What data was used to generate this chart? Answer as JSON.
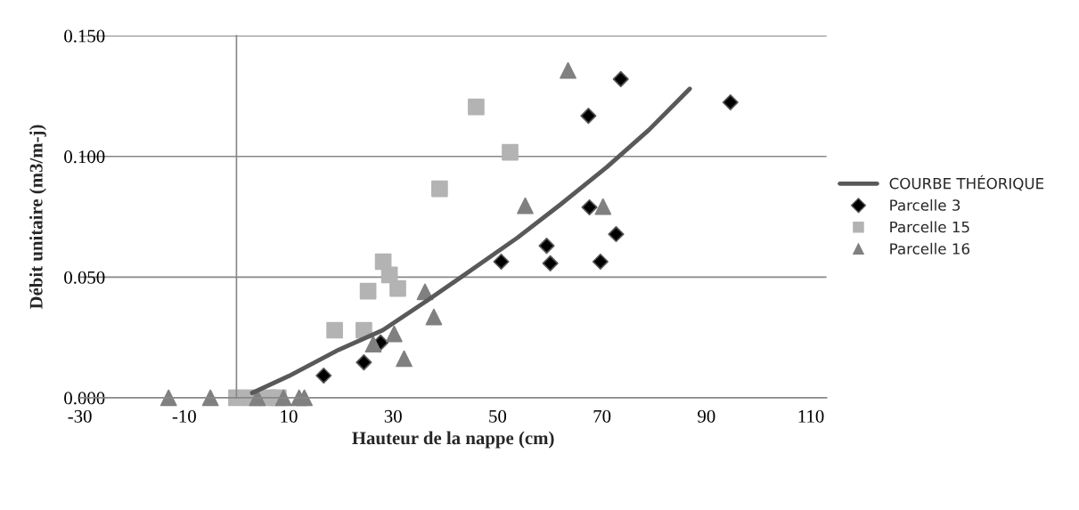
{
  "chart_data": {
    "type": "scatter",
    "xlabel": "Hauteur de la nappe (cm)",
    "ylabel": "Débit unitaire (m3/m-j)",
    "xlim": [
      -30,
      113
    ],
    "xticks": [
      -30,
      -10,
      10,
      30,
      50,
      70,
      90,
      110
    ],
    "ylim": [
      0,
      0.15
    ],
    "yticks": [
      {
        "value": 0,
        "label": "0.000"
      },
      {
        "value": 0.05,
        "label": "0.050"
      },
      {
        "value": 0.1,
        "label": "0.100"
      },
      {
        "value": 0.15,
        "label": "0.150"
      }
    ],
    "grid": "y",
    "legend": "right",
    "series": [
      {
        "name": "COURBE THÉORIQUE",
        "type": "line",
        "color": "#595959",
        "marker": "none",
        "line_style": "solid",
        "x": [
          3,
          10,
          19.6,
          28,
          36.7,
          45,
          53.8,
          62,
          70.9,
          79,
          86.8
        ],
        "values": [
          0.002,
          0.009,
          0.0199,
          0.028,
          0.0405,
          0.053,
          0.0663,
          0.08,
          0.0955,
          0.111,
          0.128
        ]
      },
      {
        "name": "Parcelle 3",
        "type": "scatter",
        "color": "#000000",
        "marker": "diamond",
        "x": [
          16.7,
          24.4,
          27.6,
          50.7,
          59.4,
          60.1,
          67.6,
          72.7,
          69.7,
          67.4,
          73.6,
          94.6
        ],
        "values": [
          0.0092,
          0.0147,
          0.0229,
          0.0564,
          0.063,
          0.0557,
          0.0789,
          0.0678,
          0.0564,
          0.1168,
          0.132,
          0.1224
        ]
      },
      {
        "name": "Parcelle 15",
        "type": "scatter",
        "color": "#b3b3b3",
        "marker": "square",
        "x": [
          0,
          3,
          6,
          8,
          18.8,
          24.4,
          25.2,
          28.1,
          29.3,
          30.9,
          38.9,
          52.4,
          45.9
        ],
        "values": [
          0,
          0,
          0,
          0,
          0.028,
          0.028,
          0.0442,
          0.0564,
          0.0509,
          0.0453,
          0.0866,
          0.1017,
          0.1205
        ]
      },
      {
        "name": "Parcelle 16",
        "type": "scatter",
        "color": "#808080",
        "marker": "triangle",
        "x": [
          -13,
          -5,
          4,
          9,
          12,
          13,
          26.2,
          30.2,
          32.1,
          36.1,
          37.8,
          55.3,
          70.2,
          63.5
        ],
        "values": [
          0,
          0,
          0,
          0,
          0,
          0,
          0.0222,
          0.0265,
          0.0162,
          0.0439,
          0.0335,
          0.0796,
          0.0792,
          0.1356
        ]
      }
    ]
  }
}
